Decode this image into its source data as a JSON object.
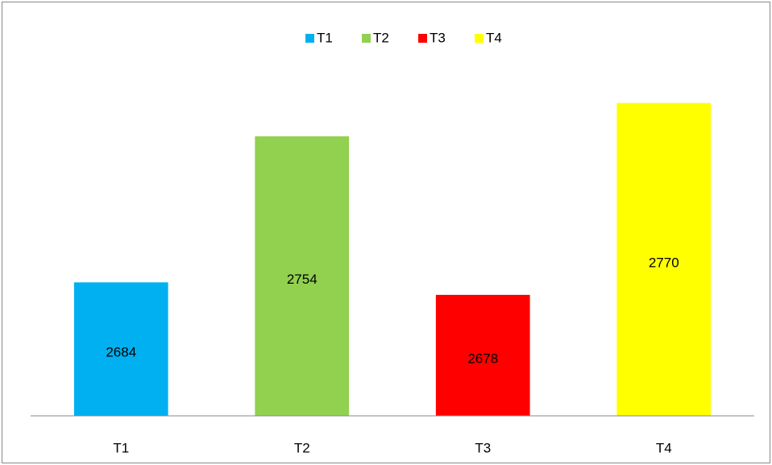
{
  "chart_data": {
    "type": "bar",
    "categories": [
      "T1",
      "T2",
      "T3",
      "T4"
    ],
    "values": [
      2684,
      2754,
      2678,
      2770
    ],
    "colors": [
      "#00b0f0",
      "#92d050",
      "#ff0000",
      "#ffff00"
    ],
    "ylim": [
      2620,
      2790
    ],
    "legend": "top",
    "data_labels": true
  }
}
